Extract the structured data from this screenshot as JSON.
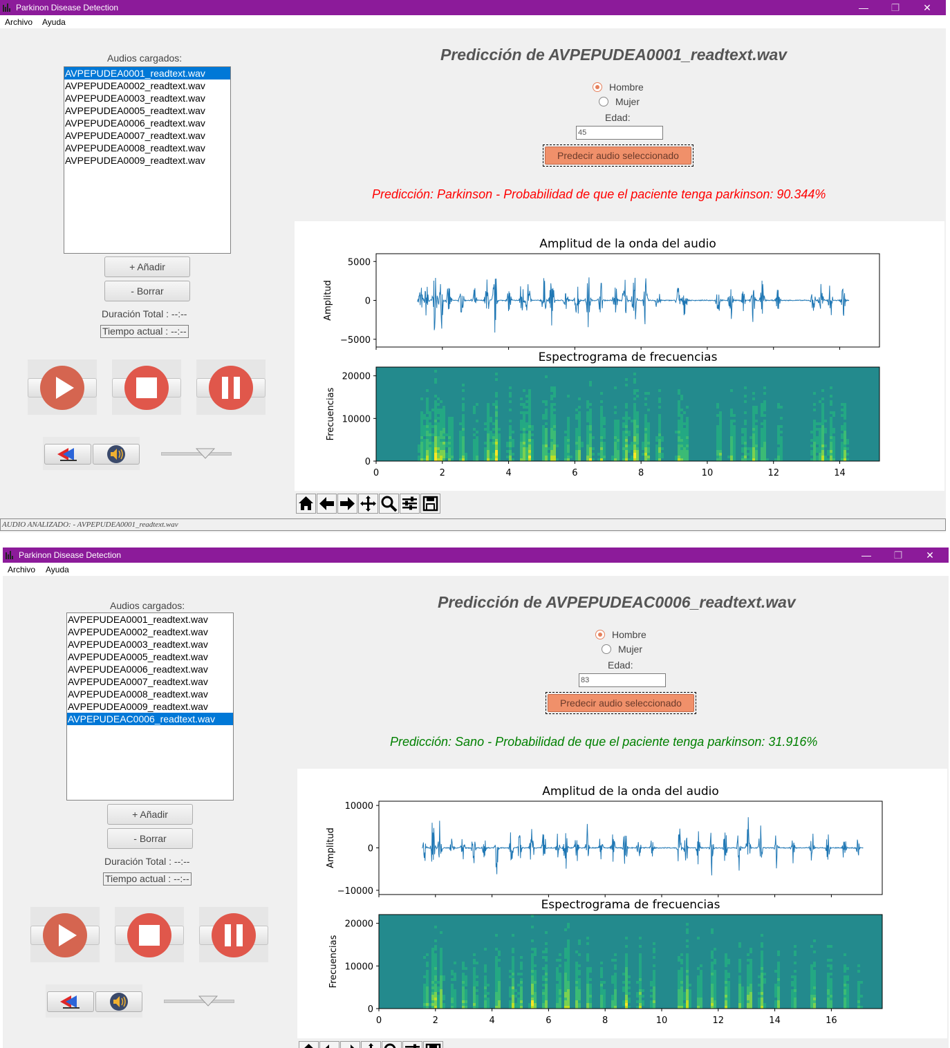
{
  "windows": [
    {
      "title": "Parkinon Disease Detection",
      "menu": [
        "Archivo",
        "Ayuda"
      ],
      "list_label": "Audios cargados:",
      "files": [
        "AVPEPUDEA0001_readtext.wav",
        "AVPEPUDEA0002_readtext.wav",
        "AVPEPUDEA0003_readtext.wav",
        "AVPEPUDEA0005_readtext.wav",
        "AVPEPUDEA0006_readtext.wav",
        "AVPEPUDEA0007_readtext.wav",
        "AVPEPUDEA0008_readtext.wav",
        "AVPEPUDEA0009_readtext.wav"
      ],
      "selected_index": 0,
      "add_label": "+ Añadir",
      "delete_label": "- Borrar",
      "duration_label": "Duración Total : --:--",
      "current_time_label": "Tiempo actual : --:--",
      "heading": "Predicción de AVPEPUDEA0001_readtext.wav",
      "gender_options": [
        "Hombre",
        "Mujer"
      ],
      "gender_selected": "Hombre",
      "age_label": "Edad:",
      "age_value": "45",
      "predict_label": "Predecir audio seleccionado",
      "result": "Predicción: Parkinson - Probabilidad de que el paciente tenga parkinson: 90.344%",
      "result_color": "#ff0000",
      "status": "AUDIO ANALIZADO: - AVPEPUDEA0001_readtext.wav"
    },
    {
      "title": "Parkinon Disease Detection",
      "menu": [
        "Archivo",
        "Ayuda"
      ],
      "list_label": "Audios cargados:",
      "files": [
        "AVPEPUDEA0001_readtext.wav",
        "AVPEPUDEA0002_readtext.wav",
        "AVPEPUDEA0003_readtext.wav",
        "AVPEPUDEA0005_readtext.wav",
        "AVPEPUDEA0006_readtext.wav",
        "AVPEPUDEA0007_readtext.wav",
        "AVPEPUDEA0008_readtext.wav",
        "AVPEPUDEA0009_readtext.wav",
        "AVPEPUDEAC0006_readtext.wav"
      ],
      "selected_index": 8,
      "add_label": "+ Añadir",
      "delete_label": "- Borrar",
      "duration_label": "Duración Total : --:--",
      "current_time_label": "Tiempo actual : --:--",
      "heading": "Predicción de AVPEPUDEAC0006_readtext.wav",
      "gender_options": [
        "Hombre",
        "Mujer"
      ],
      "gender_selected": "Hombre",
      "age_label": "Edad:",
      "age_value": "83",
      "predict_label": "Predecir audio seleccionado",
      "result": "Predicción: Sano - Probabilidad de que el paciente tenga parkinson: 31.916%",
      "result_color": "#008000",
      "status": ""
    }
  ],
  "chart_data": [
    {
      "type": "line",
      "title": "Amplitud de la onda del audio",
      "ylabel": "Amplitud",
      "ylim": [
        -6000,
        6000
      ],
      "yticks": [
        5000,
        0,
        -5000
      ],
      "ytick_labels": [
        "5000",
        "0",
        "−5000"
      ],
      "xlim": [
        -0.7,
        15.2
      ],
      "series_color": "#1f77b4",
      "bursts": [
        [
          0.7,
          0.5
        ],
        [
          0.9,
          0.7
        ],
        [
          1.15,
          1.0
        ],
        [
          1.35,
          0.8
        ],
        [
          1.6,
          0.5
        ],
        [
          2.0,
          0.55
        ],
        [
          2.4,
          0.35
        ],
        [
          2.8,
          0.65
        ],
        [
          3.05,
          1.0
        ],
        [
          3.5,
          0.45
        ],
        [
          3.9,
          0.7
        ],
        [
          4.1,
          0.8
        ],
        [
          4.6,
          0.65
        ],
        [
          4.85,
          0.9
        ],
        [
          5.3,
          0.45
        ],
        [
          5.65,
          0.65
        ],
        [
          6.0,
          0.85
        ],
        [
          6.4,
          0.55
        ],
        [
          6.85,
          0.6
        ],
        [
          7.15,
          0.75
        ],
        [
          7.45,
          1.0
        ],
        [
          7.8,
          0.65
        ],
        [
          8.2,
          0.5
        ],
        [
          8.85,
          0.6
        ],
        [
          9.05,
          0.45
        ],
        [
          10.1,
          0.5
        ],
        [
          10.5,
          0.55
        ],
        [
          10.9,
          0.45
        ],
        [
          11.2,
          0.8
        ],
        [
          11.5,
          0.55
        ],
        [
          12.0,
          0.35
        ],
        [
          13.1,
          0.4
        ],
        [
          13.35,
          0.7
        ],
        [
          13.65,
          0.55
        ],
        [
          14.05,
          0.6
        ]
      ],
      "grid": false
    },
    {
      "type": "heatmap",
      "title": "Espectrograma de frecuencias",
      "ylabel": "Frecuencias",
      "ylim": [
        0,
        22050
      ],
      "yticks": [
        20000,
        10000,
        0
      ],
      "xlim": [
        0,
        15.2
      ],
      "xticks": [
        0,
        2,
        4,
        6,
        8,
        10,
        12,
        14
      ],
      "grid": false
    },
    {
      "type": "line",
      "title": "Amplitud de la onda del audio",
      "ylabel": "Amplitud",
      "ylim": [
        -11000,
        11000
      ],
      "yticks": [
        10000,
        0,
        -10000
      ],
      "ytick_labels": [
        "10000",
        "0",
        "−10000"
      ],
      "xlim": [
        -0.8,
        17.8
      ],
      "series_color": "#1f77b4",
      "bursts": [
        [
          0.9,
          0.5
        ],
        [
          1.2,
          1.0
        ],
        [
          1.45,
          0.65
        ],
        [
          1.9,
          0.4
        ],
        [
          2.3,
          0.55
        ],
        [
          2.7,
          0.5
        ],
        [
          3.1,
          0.4
        ],
        [
          3.55,
          0.7
        ],
        [
          4.1,
          0.75
        ],
        [
          4.4,
          0.45
        ],
        [
          4.85,
          0.95
        ],
        [
          5.3,
          0.6
        ],
        [
          5.8,
          0.5
        ],
        [
          6.1,
          0.95
        ],
        [
          6.5,
          0.7
        ],
        [
          6.9,
          0.6
        ],
        [
          7.4,
          0.45
        ],
        [
          7.85,
          0.5
        ],
        [
          8.3,
          0.75
        ],
        [
          8.8,
          0.6
        ],
        [
          9.3,
          0.45
        ],
        [
          10.3,
          0.7
        ],
        [
          10.55,
          0.8
        ],
        [
          11.0,
          0.55
        ],
        [
          11.5,
          0.7
        ],
        [
          12.0,
          0.6
        ],
        [
          12.5,
          0.55
        ],
        [
          12.85,
          0.85
        ],
        [
          13.3,
          0.75
        ],
        [
          13.9,
          0.55
        ],
        [
          14.5,
          0.45
        ],
        [
          15.2,
          0.6
        ],
        [
          15.8,
          0.5
        ],
        [
          16.4,
          0.45
        ],
        [
          16.9,
          0.3
        ]
      ],
      "grid": false
    },
    {
      "type": "heatmap",
      "title": "Espectrograma de frecuencias",
      "ylabel": "Frecuencias",
      "ylim": [
        0,
        22050
      ],
      "yticks": [
        20000,
        10000,
        0
      ],
      "xlim": [
        0,
        17.8
      ],
      "xticks": [
        0,
        2,
        4,
        6,
        8,
        10,
        12,
        14,
        16
      ],
      "grid": false
    }
  ]
}
